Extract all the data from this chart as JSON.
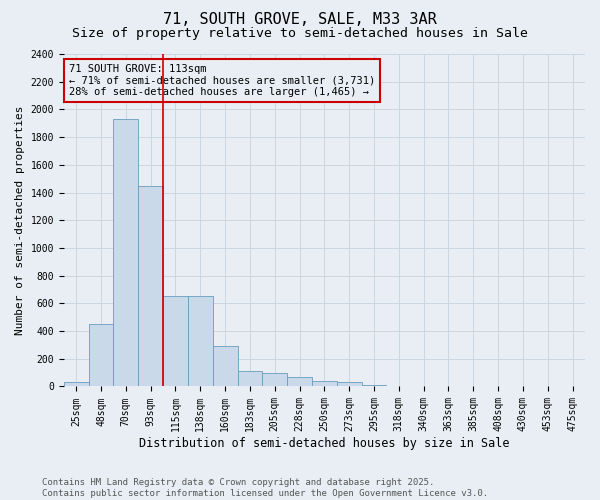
{
  "title": "71, SOUTH GROVE, SALE, M33 3AR",
  "subtitle": "Size of property relative to semi-detached houses in Sale",
  "xlabel": "Distribution of semi-detached houses by size in Sale",
  "ylabel": "Number of semi-detached properties",
  "footer_line1": "Contains HM Land Registry data © Crown copyright and database right 2025.",
  "footer_line2": "Contains public sector information licensed under the Open Government Licence v3.0.",
  "bar_labels": [
    "25sqm",
    "48sqm",
    "70sqm",
    "93sqm",
    "115sqm",
    "138sqm",
    "160sqm",
    "183sqm",
    "205sqm",
    "228sqm",
    "250sqm",
    "273sqm",
    "295sqm",
    "318sqm",
    "340sqm",
    "363sqm",
    "385sqm",
    "408sqm",
    "430sqm",
    "453sqm",
    "475sqm"
  ],
  "bar_values": [
    30,
    450,
    1930,
    1450,
    650,
    650,
    290,
    115,
    100,
    65,
    40,
    35,
    10,
    0,
    0,
    0,
    0,
    0,
    0,
    0,
    0
  ],
  "bar_color": "#c9d9ea",
  "bar_edge_color": "#6a9cc0",
  "grid_color": "#ccd6e0",
  "background_color": "#e8eef4",
  "vline_x": 3.5,
  "vline_color": "#cc0000",
  "annotation_text": "71 SOUTH GROVE: 113sqm\n← 71% of semi-detached houses are smaller (3,731)\n28% of semi-detached houses are larger (1,465) →",
  "annotation_box_color": "#cc0000",
  "ylim": [
    0,
    2400
  ],
  "yticks": [
    0,
    200,
    400,
    600,
    800,
    1000,
    1200,
    1400,
    1600,
    1800,
    2000,
    2200,
    2400
  ],
  "title_fontsize": 11,
  "subtitle_fontsize": 9.5,
  "xlabel_fontsize": 8.5,
  "ylabel_fontsize": 8,
  "tick_fontsize": 7,
  "annotation_fontsize": 7.5,
  "footer_fontsize": 6.5
}
